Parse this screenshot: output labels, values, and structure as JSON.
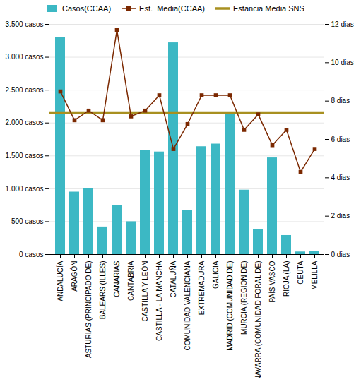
{
  "chart_data": {
    "type": "bar",
    "categories": [
      "ANDALUCÍA",
      "ARAGÓN",
      "ASTURIAS (PRINCIPADO DE)",
      "BALEARS (ILLES)",
      "CANARIAS",
      "CANTABRIA",
      "CASTILLA Y LEÓN",
      "CASTILLA - LA MANCHA",
      "CATALUÑA",
      "COMUNIDAD VALENCIANA",
      "EXTREMADURA",
      "GALICIA",
      "MADRID (COMUNIDAD DE)",
      "MURCIA (REGION DE)",
      "NAVARRA (COMUNIDAD FORAL DE)",
      "PAÍS VASCO",
      "RIOJA (LA)",
      "CEUTA",
      "MELILLA"
    ],
    "series": [
      {
        "name": "Casos(CCAA)",
        "type": "bar",
        "color": "#3CB8C4",
        "values": [
          3300,
          950,
          1000,
          420,
          750,
          500,
          1580,
          1560,
          3220,
          670,
          1640,
          1680,
          2130,
          980,
          380,
          1470,
          290,
          40,
          50
        ]
      },
      {
        "name": "Est.  Media(CCAA)",
        "type": "line",
        "axis": "y2",
        "color": "#7B2800",
        "marker": "square",
        "values": [
          8.5,
          7.0,
          7.5,
          7.0,
          11.7,
          7.2,
          7.5,
          8.3,
          5.5,
          6.8,
          8.3,
          8.3,
          8.3,
          6.5,
          7.3,
          5.7,
          6.5,
          4.3,
          5.5
        ]
      }
    ],
    "reference_lines": [
      {
        "name": "Estancia Media SNS",
        "y": 7.4,
        "axis": "y2",
        "color": "#A89020"
      }
    ],
    "ylim": [
      0,
      3500
    ],
    "yticks": [
      {
        "value": 0,
        "label": "0 casos"
      },
      {
        "value": 500,
        "label": "500 casos"
      },
      {
        "value": 1000,
        "label": "1.000 casos"
      },
      {
        "value": 1500,
        "label": "1.500 casos"
      },
      {
        "value": 2000,
        "label": "2.000 casos"
      },
      {
        "value": 2500,
        "label": "2.500 casos"
      },
      {
        "value": 3000,
        "label": "3.000 casos"
      },
      {
        "value": 3500,
        "label": "3.500 casos"
      }
    ],
    "y2lim": [
      0,
      12
    ],
    "y2ticks": [
      {
        "value": 0,
        "label": "0 dias"
      },
      {
        "value": 2,
        "label": "2 dias"
      },
      {
        "value": 4,
        "label": "4 dias"
      },
      {
        "value": 6,
        "label": "6 dias"
      },
      {
        "value": 8,
        "label": "8 dias"
      },
      {
        "value": 10,
        "label": "10 dias"
      },
      {
        "value": 12,
        "label": "12 dias"
      }
    ],
    "grid": true,
    "legend": "top"
  }
}
